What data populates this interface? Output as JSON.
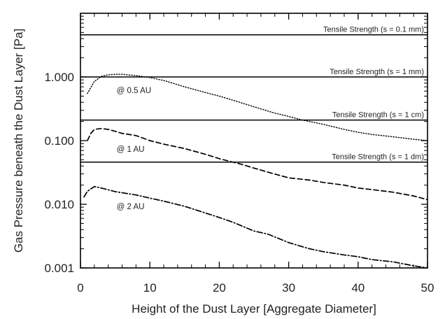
{
  "chart_data": {
    "type": "line",
    "xlabel": "Height of the Dust Layer [Aggregate Diameter]",
    "ylabel": "Gas Pressure beneath the Dust Layer [Pa]",
    "xlim": [
      0,
      50
    ],
    "ylim": [
      0.001,
      10
    ],
    "yscale": "log",
    "grid": false,
    "xticks": [
      0,
      10,
      20,
      30,
      40,
      50
    ],
    "xtick_labels": [
      "0",
      "10",
      "20",
      "30",
      "40",
      "50"
    ],
    "yticks": [
      0.001,
      0.01,
      0.1,
      1.0
    ],
    "ytick_labels": [
      "0.001",
      "0.010",
      "0.100",
      "1.000"
    ],
    "reference_lines": [
      {
        "label": "Tensile Strength (s = 0.1 mm)",
        "y": 4.6
      },
      {
        "label": "Tensile Strength (s = 1 mm)",
        "y": 1.0
      },
      {
        "label": "Tensile Strength (s = 1 cm)",
        "y": 0.21
      },
      {
        "label": "Tensile Strength (s = 1 dm)",
        "y": 0.046
      }
    ],
    "series": [
      {
        "name": "@ 0.5 AU",
        "style": "dotted",
        "x": [
          1,
          2,
          3,
          4,
          5,
          6,
          8,
          10,
          12,
          15,
          18,
          20,
          22,
          25,
          28,
          30,
          32,
          35,
          38,
          40,
          42,
          45,
          48,
          50
        ],
        "y": [
          0.55,
          0.85,
          1.02,
          1.08,
          1.1,
          1.1,
          1.05,
          0.98,
          0.88,
          0.7,
          0.57,
          0.5,
          0.43,
          0.34,
          0.27,
          0.24,
          0.21,
          0.18,
          0.15,
          0.135,
          0.125,
          0.115,
          0.105,
          0.1
        ]
      },
      {
        "name": "@ 1 AU",
        "style": "dashed",
        "x": [
          1,
          1.5,
          2,
          3,
          4,
          5,
          6,
          8,
          10,
          12,
          15,
          18,
          20,
          23,
          25,
          27,
          30,
          33,
          35,
          38,
          40,
          42,
          45,
          48,
          50
        ],
        "y": [
          0.1,
          0.13,
          0.15,
          0.155,
          0.15,
          0.14,
          0.13,
          0.12,
          0.1,
          0.088,
          0.075,
          0.061,
          0.052,
          0.043,
          0.037,
          0.032,
          0.026,
          0.024,
          0.022,
          0.02,
          0.018,
          0.017,
          0.0155,
          0.0135,
          0.0118
        ]
      },
      {
        "name": "@ 2 AU",
        "style": "dash-dot",
        "x": [
          0.5,
          1,
          2,
          3,
          5,
          8,
          10,
          12,
          15,
          18,
          20,
          22,
          25,
          27,
          30,
          33,
          35,
          38,
          40,
          42,
          45,
          48,
          50
        ],
        "y": [
          0.013,
          0.016,
          0.019,
          0.018,
          0.0158,
          0.014,
          0.0125,
          0.0112,
          0.0093,
          0.0073,
          0.0062,
          0.0052,
          0.0038,
          0.0034,
          0.0025,
          0.002,
          0.0018,
          0.0016,
          0.0015,
          0.00135,
          0.00125,
          0.00108,
          0.001
        ]
      }
    ]
  }
}
